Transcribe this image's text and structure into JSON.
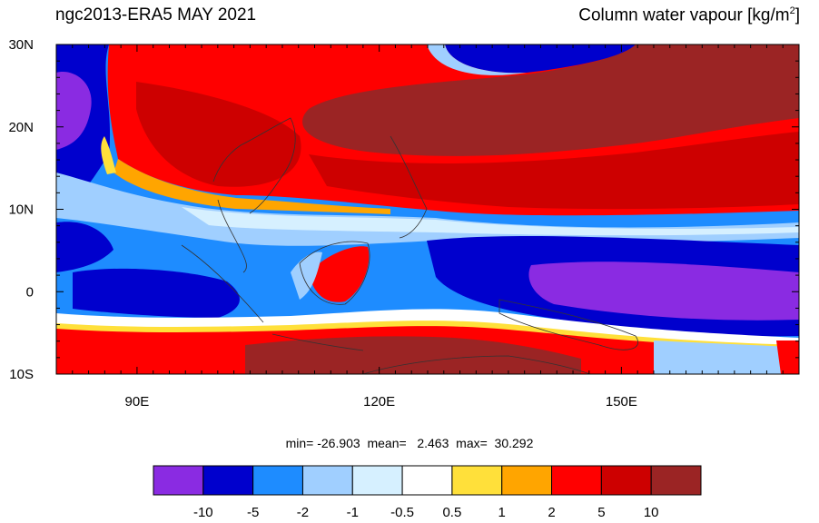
{
  "header": {
    "title_left": "ngc2013-ERA5  MAY 2021",
    "title_right": "Column water vapour [kg/m",
    "title_right_sup": "2",
    "title_right_end": "]"
  },
  "map": {
    "lon_range": [
      80,
      172
    ],
    "lat_range": [
      -10,
      30
    ],
    "lat_ticks": [
      {
        "value": 30,
        "label": "30N"
      },
      {
        "value": 20,
        "label": "20N"
      },
      {
        "value": 10,
        "label": "10N"
      },
      {
        "value": 0,
        "label": "0"
      },
      {
        "value": -10,
        "label": "10S"
      }
    ],
    "lon_ticks": [
      {
        "value": 90,
        "label": "90E"
      },
      {
        "value": 120,
        "label": "120E"
      },
      {
        "value": 150,
        "label": "150E"
      }
    ],
    "ocean_background": "#1e8cff"
  },
  "stats": {
    "text": "min= -26.903  mean=   2.463  max=  30.292"
  },
  "colorbar": {
    "colors": [
      "#8a2be2",
      "#0000cd",
      "#1e8cff",
      "#a0cfff",
      "#d6f0ff",
      "#ffffff",
      "#ffe03a",
      "#ffa500",
      "#ff0000",
      "#cd0000",
      "#9b2424"
    ],
    "labels": [
      "-10",
      "-5",
      "-2",
      "-1",
      "-0.5",
      "0.5",
      "1",
      "2",
      "5",
      "10"
    ]
  }
}
